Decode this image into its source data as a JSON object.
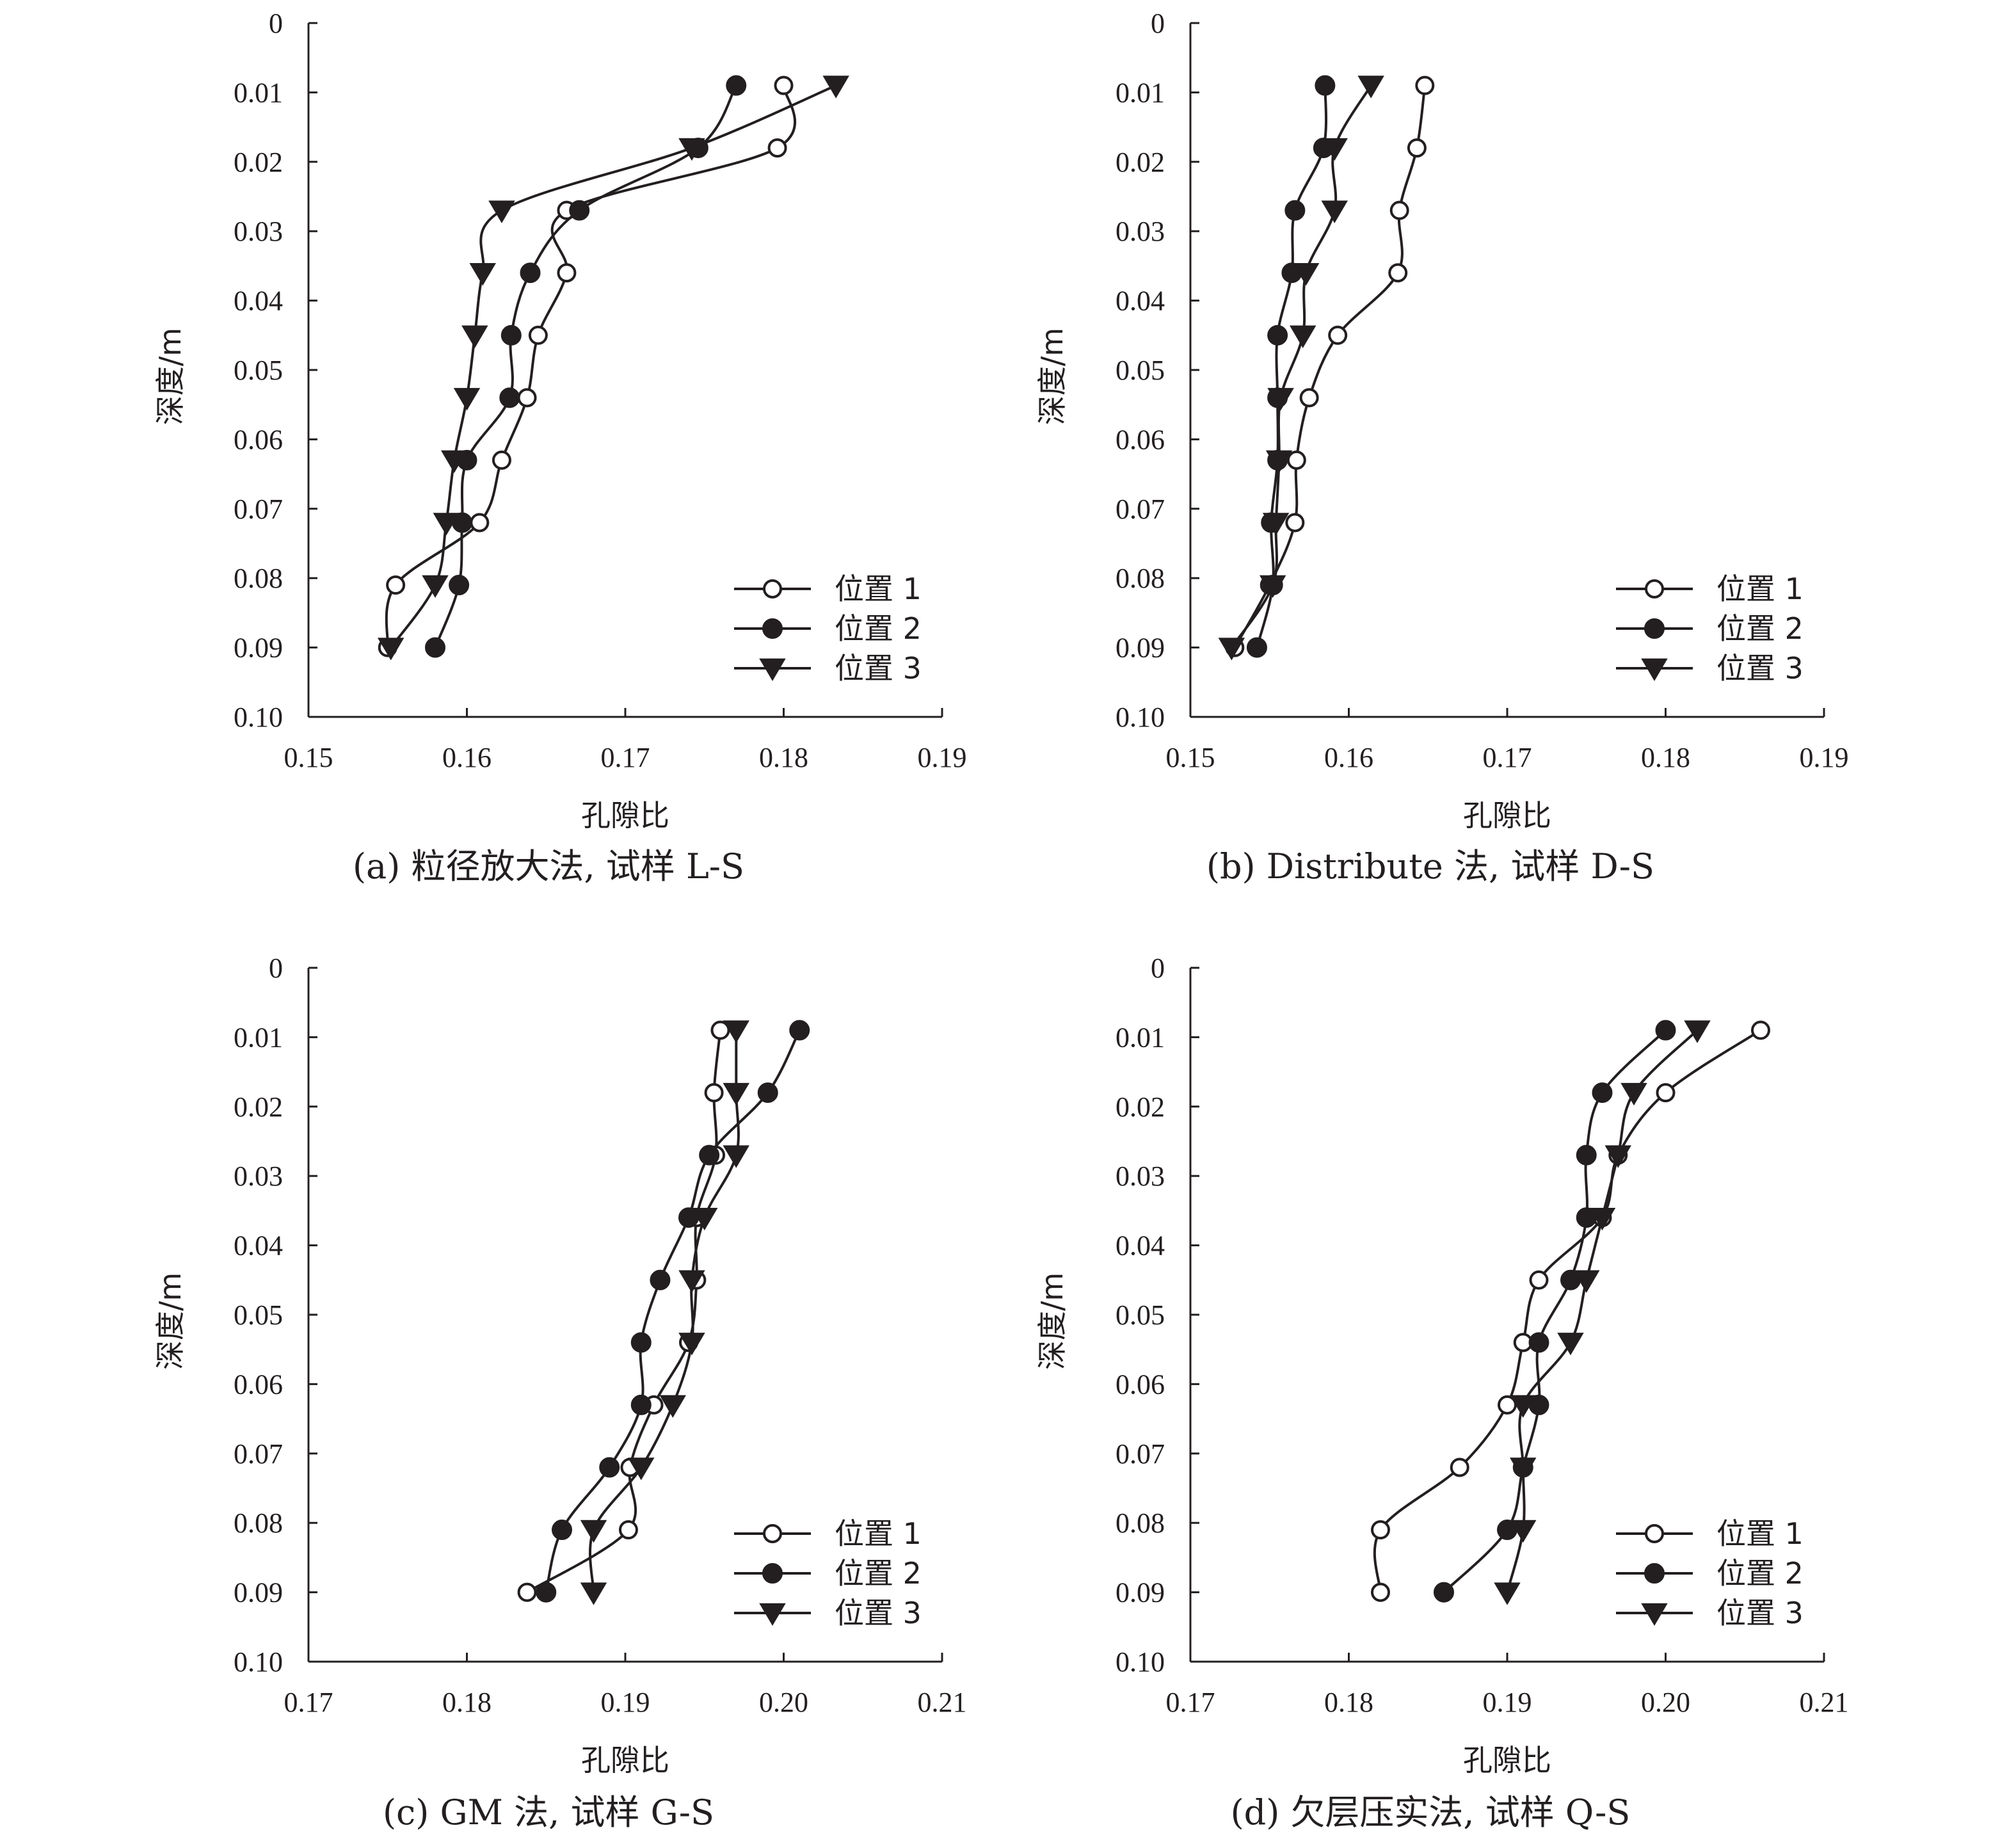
{
  "chart_data": [
    {
      "type": "line",
      "caption": "(a) 粒径放大法, 试样 L-S",
      "xlabel": "孔隙比",
      "ylabel": "深度/m",
      "xlim": [
        0.15,
        0.19
      ],
      "ylim": [
        0,
        0.1
      ],
      "y_inverted": true,
      "xticks": [
        "0.15",
        "0.16",
        "0.17",
        "0.18",
        "0.19"
      ],
      "yticks": [
        "0",
        "0.01",
        "0.02",
        "0.03",
        "0.04",
        "0.05",
        "0.06",
        "0.07",
        "0.08",
        "0.09",
        "0.10"
      ],
      "grid": false,
      "legend_position": "bottom-right",
      "series": [
        {
          "name": "位置 1",
          "marker": "open-circle",
          "x": [
            0.18,
            0.1796,
            0.1663,
            0.1663,
            0.1645,
            0.1638,
            0.1622,
            0.1608,
            0.1555,
            0.155
          ],
          "y": [
            0.009,
            0.018,
            0.027,
            0.036,
            0.045,
            0.054,
            0.063,
            0.072,
            0.081,
            0.09
          ]
        },
        {
          "name": "位置 2",
          "marker": "filled-circle",
          "x": [
            0.177,
            0.1746,
            0.1671,
            0.164,
            0.1628,
            0.1627,
            0.16,
            0.1597,
            0.1595,
            0.158
          ],
          "y": [
            0.009,
            0.018,
            0.027,
            0.036,
            0.045,
            0.054,
            0.063,
            0.072,
            0.081,
            0.09
          ]
        },
        {
          "name": "位置 3",
          "marker": "filled-triangle",
          "x": [
            0.1833,
            0.1742,
            0.1622,
            0.161,
            0.1605,
            0.16,
            0.1592,
            0.1587,
            0.158,
            0.1552
          ],
          "y": [
            0.009,
            0.018,
            0.027,
            0.036,
            0.045,
            0.054,
            0.063,
            0.072,
            0.081,
            0.09
          ]
        }
      ]
    },
    {
      "type": "line",
      "caption": "(b) Distribute 法, 试样 D-S",
      "xlabel": "孔隙比",
      "ylabel": "深度/m",
      "xlim": [
        0.15,
        0.19
      ],
      "ylim": [
        0,
        0.1
      ],
      "y_inverted": true,
      "xticks": [
        "0.15",
        "0.16",
        "0.17",
        "0.18",
        "0.19"
      ],
      "yticks": [
        "0",
        "0.01",
        "0.02",
        "0.03",
        "0.04",
        "0.05",
        "0.06",
        "0.07",
        "0.08",
        "0.09",
        "0.10"
      ],
      "grid": false,
      "legend_position": "bottom-right",
      "series": [
        {
          "name": "位置 1",
          "marker": "open-circle",
          "x": [
            0.1648,
            0.1643,
            0.1632,
            0.1631,
            0.1593,
            0.1575,
            0.1567,
            0.1566,
            0.155,
            0.1528
          ],
          "y": [
            0.009,
            0.018,
            0.027,
            0.036,
            0.045,
            0.054,
            0.063,
            0.072,
            0.081,
            0.09
          ]
        },
        {
          "name": "位置 2",
          "marker": "filled-circle",
          "x": [
            0.1585,
            0.1584,
            0.1566,
            0.1564,
            0.1555,
            0.1555,
            0.1555,
            0.1551,
            0.1552,
            0.1542
          ],
          "y": [
            0.009,
            0.018,
            0.027,
            0.036,
            0.045,
            0.054,
            0.063,
            0.072,
            0.081,
            0.09
          ]
        },
        {
          "name": "位置 3",
          "marker": "filled-triangle",
          "x": [
            0.1614,
            0.1591,
            0.1591,
            0.1573,
            0.1571,
            0.1557,
            0.1556,
            0.1554,
            0.1552,
            0.1526
          ],
          "y": [
            0.009,
            0.018,
            0.027,
            0.036,
            0.045,
            0.054,
            0.063,
            0.072,
            0.081,
            0.09
          ]
        }
      ]
    },
    {
      "type": "line",
      "caption": "(c) GM 法, 试样 G-S",
      "xlabel": "孔隙比",
      "ylabel": "深度/m",
      "xlim": [
        0.17,
        0.21
      ],
      "ylim": [
        0,
        0.1
      ],
      "y_inverted": true,
      "xticks": [
        "0.17",
        "0.18",
        "0.19",
        "0.20",
        "0.21"
      ],
      "yticks": [
        "0",
        "0.01",
        "0.02",
        "0.03",
        "0.04",
        "0.05",
        "0.06",
        "0.07",
        "0.08",
        "0.09",
        "0.10"
      ],
      "grid": false,
      "legend_position": "bottom-right",
      "series": [
        {
          "name": "位置 1",
          "marker": "open-circle",
          "x": [
            0.196,
            0.1956,
            0.1957,
            0.1945,
            0.1945,
            0.194,
            0.1918,
            0.1903,
            0.1902,
            0.1838
          ],
          "y": [
            0.009,
            0.018,
            0.027,
            0.036,
            0.045,
            0.054,
            0.063,
            0.072,
            0.081,
            0.09
          ]
        },
        {
          "name": "位置 2",
          "marker": "filled-circle",
          "x": [
            0.201,
            0.199,
            0.1953,
            0.194,
            0.1922,
            0.191,
            0.191,
            0.189,
            0.186,
            0.185
          ],
          "y": [
            0.009,
            0.018,
            0.027,
            0.036,
            0.045,
            0.054,
            0.063,
            0.072,
            0.081,
            0.09
          ]
        },
        {
          "name": "位置 3",
          "marker": "filled-triangle",
          "x": [
            0.197,
            0.197,
            0.197,
            0.195,
            0.1942,
            0.1942,
            0.193,
            0.191,
            0.188,
            0.188
          ],
          "y": [
            0.009,
            0.018,
            0.027,
            0.036,
            0.045,
            0.054,
            0.063,
            0.072,
            0.081,
            0.09
          ]
        }
      ]
    },
    {
      "type": "line",
      "caption": "(d) 欠层压实法, 试样 Q-S",
      "xlabel": "孔隙比",
      "ylabel": "深度/m",
      "xlim": [
        0.17,
        0.21
      ],
      "ylim": [
        0,
        0.1
      ],
      "y_inverted": true,
      "xticks": [
        "0.17",
        "0.18",
        "0.19",
        "0.20",
        "0.21"
      ],
      "yticks": [
        "0",
        "0.01",
        "0.02",
        "0.03",
        "0.04",
        "0.05",
        "0.06",
        "0.07",
        "0.08",
        "0.09",
        "0.10"
      ],
      "grid": false,
      "legend_position": "bottom-right",
      "series": [
        {
          "name": "位置 1",
          "marker": "open-circle",
          "x": [
            0.206,
            0.2,
            0.197,
            0.196,
            0.192,
            0.191,
            0.19,
            0.187,
            0.182,
            0.182
          ],
          "y": [
            0.009,
            0.018,
            0.027,
            0.036,
            0.045,
            0.054,
            0.063,
            0.072,
            0.081,
            0.09
          ]
        },
        {
          "name": "位置 2",
          "marker": "filled-circle",
          "x": [
            0.2,
            0.196,
            0.195,
            0.195,
            0.194,
            0.192,
            0.192,
            0.191,
            0.19,
            0.186
          ],
          "y": [
            0.009,
            0.018,
            0.027,
            0.036,
            0.045,
            0.054,
            0.063,
            0.072,
            0.081,
            0.09
          ]
        },
        {
          "name": "位置 3",
          "marker": "filled-triangle",
          "x": [
            0.202,
            0.198,
            0.197,
            0.196,
            0.195,
            0.194,
            0.191,
            0.191,
            0.191,
            0.19
          ],
          "y": [
            0.009,
            0.018,
            0.027,
            0.036,
            0.045,
            0.054,
            0.063,
            0.072,
            0.081,
            0.09
          ]
        }
      ]
    }
  ]
}
